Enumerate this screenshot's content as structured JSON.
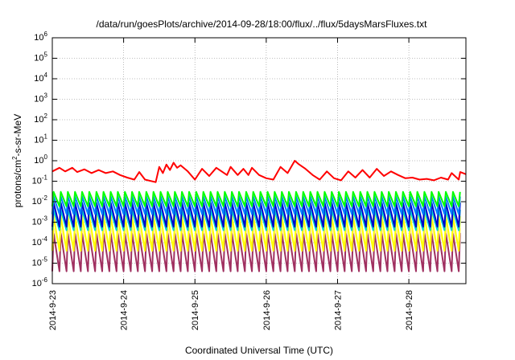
{
  "chart_data": {
    "type": "line",
    "title": "/data/run/goesPlots/archive/2014-09-28/18:00/flux/../flux/5daysMarsFluxes.txt",
    "xlabel": "Coordinated Universal Time (UTC)",
    "ylabel": {
      "pre": "protons/cm",
      "sup": "2",
      "post": "-s-sr-MeV"
    },
    "x_unit": "days since 2014-09-23 00:00 UTC",
    "xlim": [
      0,
      5.8
    ],
    "ylim": [
      1e-06,
      1000000.0
    ],
    "yscale": "log",
    "grid": true,
    "legend": "none",
    "x_ticks": [
      {
        "value": 0,
        "label": "2014-9-23"
      },
      {
        "value": 1,
        "label": "2014-9-24"
      },
      {
        "value": 2,
        "label": "2014-9-25"
      },
      {
        "value": 3,
        "label": "2014-9-26"
      },
      {
        "value": 4,
        "label": "2014-9-27"
      },
      {
        "value": 5,
        "label": "2014-9-28"
      }
    ],
    "y_ticks": [
      {
        "value": 1e-06,
        "base": "10",
        "exp": "-6"
      },
      {
        "value": 1e-05,
        "base": "10",
        "exp": "-5"
      },
      {
        "value": 0.0001,
        "base": "10",
        "exp": "-4"
      },
      {
        "value": 0.001,
        "base": "10",
        "exp": "-3"
      },
      {
        "value": 0.01,
        "base": "10",
        "exp": "-2"
      },
      {
        "value": 0.1,
        "base": "10",
        "exp": "-1"
      },
      {
        "value": 1.0,
        "base": "10",
        "exp": "0"
      },
      {
        "value": 10.0,
        "base": "10",
        "exp": "1"
      },
      {
        "value": 100.0,
        "base": "10",
        "exp": "2"
      },
      {
        "value": 1000.0,
        "base": "10",
        "exp": "3"
      },
      {
        "value": 10000.0,
        "base": "10",
        "exp": "4"
      },
      {
        "value": 100000.0,
        "base": "10",
        "exp": "5"
      },
      {
        "value": 1000000.0,
        "base": "10",
        "exp": "6"
      }
    ],
    "series": [
      {
        "color": "#ff0000",
        "x": [
          0,
          0.1,
          0.18,
          0.28,
          0.35,
          0.45,
          0.55,
          0.65,
          0.75,
          0.85,
          0.95,
          1.05,
          1.15,
          1.22,
          1.3,
          1.45,
          1.5,
          1.55,
          1.6,
          1.65,
          1.7,
          1.75,
          1.8,
          1.9,
          2.0,
          2.1,
          2.2,
          2.3,
          2.45,
          2.5,
          2.6,
          2.68,
          2.75,
          2.8,
          2.9,
          3.0,
          3.1,
          3.2,
          3.3,
          3.4,
          3.45,
          3.55,
          3.65,
          3.75,
          3.85,
          3.95,
          4.05,
          4.15,
          4.25,
          4.35,
          4.45,
          4.55,
          4.65,
          4.75,
          4.85,
          4.95,
          5.05,
          5.15,
          5.25,
          5.35,
          5.45,
          5.55,
          5.6,
          5.7,
          5.72,
          5.8
        ],
        "y": [
          0.3,
          0.45,
          0.3,
          0.45,
          0.28,
          0.38,
          0.25,
          0.35,
          0.25,
          0.3,
          0.2,
          0.15,
          0.12,
          0.28,
          0.12,
          0.09,
          0.5,
          0.25,
          0.65,
          0.35,
          0.8,
          0.45,
          0.6,
          0.3,
          0.12,
          0.4,
          0.18,
          0.45,
          0.2,
          0.5,
          0.2,
          0.4,
          0.2,
          0.45,
          0.2,
          0.14,
          0.12,
          0.5,
          0.25,
          1.0,
          0.7,
          0.4,
          0.2,
          0.12,
          0.3,
          0.14,
          0.11,
          0.3,
          0.15,
          0.35,
          0.15,
          0.4,
          0.18,
          0.3,
          0.2,
          0.14,
          0.15,
          0.12,
          0.13,
          0.11,
          0.15,
          0.12,
          0.25,
          0.12,
          0.28,
          0.22
        ]
      },
      {
        "color": "#00ff00",
        "peak": 0.03,
        "trough": 0.006
      },
      {
        "color": "#0080ff",
        "peak": 0.018,
        "trough": 0.0025
      },
      {
        "color": "#0000cc",
        "peak": 0.009,
        "trough": 0.0006
      },
      {
        "color": "#00d0d0",
        "peak": 0.004,
        "trough": 0.0004
      },
      {
        "color": "#ffff00",
        "peak": 0.002,
        "trough": 4e-05
      },
      {
        "color": "#ffe8b0",
        "peak": 0.0005,
        "trough": 6e-05
      },
      {
        "color": "#a03060",
        "peak": 0.0003,
        "trough": 4e-06
      }
    ],
    "sawtooth_period_days": 0.1
  }
}
